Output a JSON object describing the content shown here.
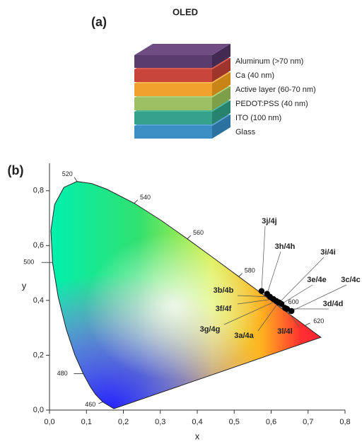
{
  "panel_a": {
    "label": "(a)",
    "title": "OLED",
    "layers": [
      "Aluminum (>70 nm)",
      "Ca (40 nm)",
      "Active layer (60-70 nm)",
      "PEDOT:PSS (40 nm)",
      "ITO (100 nm)",
      "Glass"
    ]
  },
  "chart_data": {
    "type": "scatter",
    "panel_label": "(b)",
    "x_label": "x",
    "y_label": "y",
    "xlim": [
      0,
      0.8
    ],
    "ylim": [
      0,
      0.9
    ],
    "xticks": [
      {
        "value": 0,
        "label": "0,0"
      },
      {
        "value": 0.1,
        "label": "0,1"
      },
      {
        "value": 0.2,
        "label": "0,2"
      },
      {
        "value": 0.3,
        "label": "0,3"
      },
      {
        "value": 0.4,
        "label": "0,4"
      },
      {
        "value": 0.5,
        "label": "0,5"
      },
      {
        "value": 0.6,
        "label": "0,6"
      },
      {
        "value": 0.7,
        "label": "0,7"
      },
      {
        "value": 0.8,
        "label": "0,8"
      }
    ],
    "yticks": [
      {
        "value": 0,
        "label": "0,0"
      },
      {
        "value": 0.2,
        "label": "0,2"
      },
      {
        "value": 0.4,
        "label": "0,4"
      },
      {
        "value": 0.6,
        "label": "0,6"
      },
      {
        "value": 0.8,
        "label": "0,8"
      }
    ],
    "wavelength_labels": [
      "460",
      "480",
      "500",
      "520",
      "540",
      "560",
      "580",
      "600",
      "620"
    ],
    "color": "#000000",
    "labels": [
      "3j/4j",
      "3h/4h",
      "3i/4i",
      "3e/4e",
      "3c/4c",
      "3d/4d",
      "3b/4b",
      "3f/4f",
      "3g/4g",
      "3a/4a",
      "3l/4l"
    ],
    "x": [
      0.574,
      0.589,
      0.622,
      0.628,
      0.655,
      0.643,
      0.597,
      0.606,
      0.614,
      0.62,
      0.638
    ],
    "y": [
      0.434,
      0.424,
      0.392,
      0.387,
      0.361,
      0.369,
      0.413,
      0.405,
      0.398,
      0.393,
      0.372
    ]
  }
}
